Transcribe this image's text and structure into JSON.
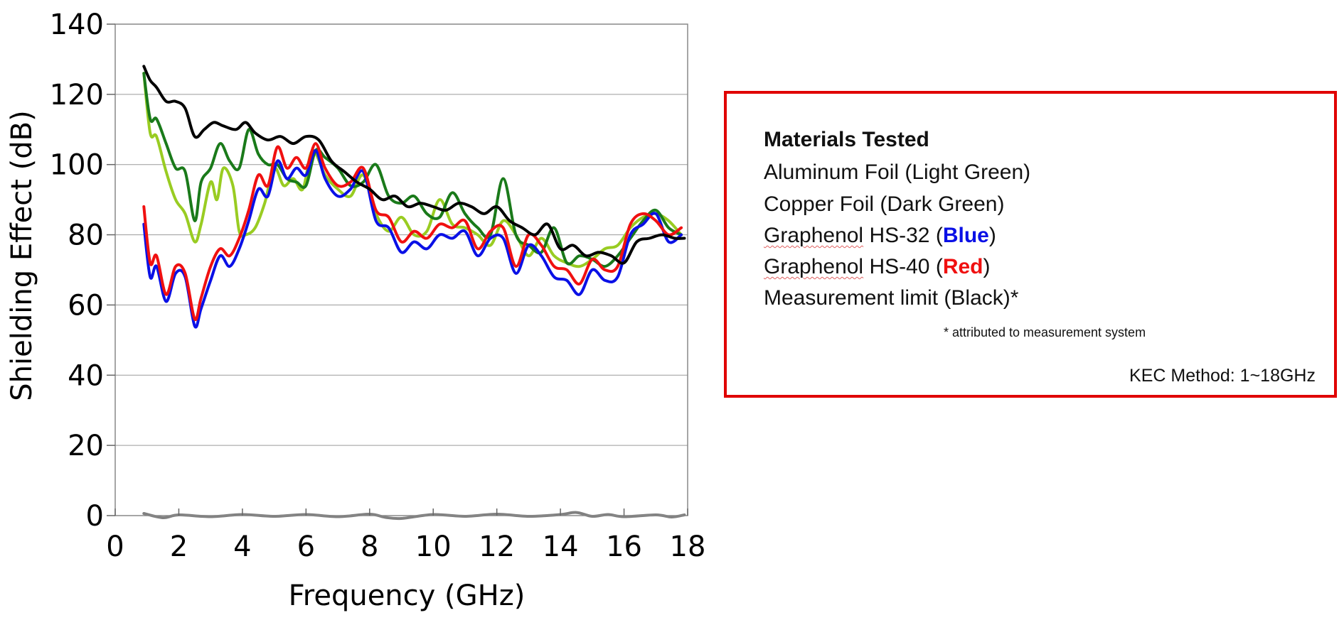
{
  "chart_data": {
    "type": "line",
    "title": "",
    "xlabel": "Frequency (GHz)",
    "ylabel": "Shielding Effect (dB)",
    "xlim": [
      0,
      18
    ],
    "ylim": [
      0,
      140
    ],
    "x_ticks": [
      "0",
      "2",
      "4",
      "6",
      "8",
      "10",
      "12",
      "14",
      "16",
      "18"
    ],
    "y_ticks": [
      "0",
      "20",
      "40",
      "60",
      "80",
      "100",
      "120",
      "140"
    ],
    "grid": "horizontal",
    "series": [
      {
        "key": "light-green",
        "color": "#99cc22",
        "x": [
          0.9,
          1.1,
          1.3,
          1.6,
          1.9,
          2.2,
          2.5,
          2.7,
          3.0,
          3.2,
          3.4,
          3.7,
          3.9,
          4.1,
          4.4,
          4.7,
          5.0,
          5.3,
          5.6,
          5.9,
          6.2,
          6.6,
          7.0,
          7.4,
          7.8,
          8.2,
          8.6,
          9.0,
          9.4,
          9.8,
          10.2,
          10.6,
          11.0,
          11.4,
          11.8,
          12.2,
          12.6,
          13.0,
          13.4,
          13.8,
          14.2,
          14.6,
          15.0,
          15.4,
          15.8,
          16.2,
          16.6,
          17.0,
          17.4,
          17.8
        ],
        "y": [
          126,
          109,
          108,
          98,
          90,
          86,
          78,
          83,
          95,
          90,
          99,
          94,
          81,
          80,
          82,
          89,
          99,
          94,
          96,
          93,
          104,
          97,
          93,
          91,
          97,
          86,
          81,
          85,
          80,
          81,
          90,
          83,
          82,
          80,
          77,
          84,
          80,
          74,
          79,
          74,
          72,
          71,
          73,
          76,
          77,
          82,
          85,
          86,
          84,
          80
        ]
      },
      {
        "key": "dark-green",
        "color": "#1a7a1a",
        "x": [
          0.9,
          1.1,
          1.3,
          1.6,
          1.9,
          2.2,
          2.5,
          2.7,
          3.0,
          3.3,
          3.6,
          3.9,
          4.2,
          4.5,
          4.8,
          5.1,
          5.4,
          5.7,
          6.0,
          6.3,
          6.6,
          7.0,
          7.4,
          7.8,
          8.2,
          8.6,
          9.0,
          9.4,
          9.8,
          10.2,
          10.6,
          11.0,
          11.4,
          11.8,
          12.2,
          12.6,
          13.0,
          13.4,
          13.8,
          14.2,
          14.6,
          15.0,
          15.4,
          15.8,
          16.2,
          16.6,
          17.0,
          17.4,
          17.8
        ],
        "y": [
          126,
          113,
          113,
          106,
          99,
          98,
          84,
          95,
          99,
          106,
          101,
          99,
          110,
          103,
          100,
          100,
          96,
          95,
          94,
          104,
          102,
          99,
          94,
          95,
          100,
          91,
          89,
          91,
          86,
          85,
          92,
          86,
          82,
          80,
          96,
          80,
          77,
          75,
          82,
          72,
          74,
          73,
          71,
          74,
          79,
          84,
          87,
          82,
          80
        ]
      },
      {
        "key": "blue",
        "color": "#0a10e6",
        "x": [
          0.9,
          1.1,
          1.3,
          1.6,
          1.9,
          2.2,
          2.5,
          2.7,
          3.0,
          3.3,
          3.6,
          3.9,
          4.2,
          4.5,
          4.8,
          5.1,
          5.4,
          5.7,
          6.0,
          6.3,
          6.6,
          7.0,
          7.4,
          7.8,
          8.2,
          8.6,
          9.0,
          9.4,
          9.8,
          10.2,
          10.6,
          11.0,
          11.4,
          11.8,
          12.2,
          12.6,
          13.0,
          13.4,
          13.8,
          14.2,
          14.6,
          15.0,
          15.4,
          15.8,
          16.2,
          16.6,
          17.0,
          17.4,
          17.8
        ],
        "y": [
          83,
          68,
          71,
          61,
          69,
          68,
          54,
          59,
          67,
          74,
          71,
          76,
          84,
          93,
          91,
          101,
          96,
          99,
          97,
          104,
          96,
          91,
          93,
          98,
          84,
          82,
          75,
          78,
          76,
          80,
          79,
          81,
          74,
          79,
          79,
          69,
          77,
          74,
          68,
          67,
          63,
          70,
          67,
          68,
          80,
          83,
          86,
          78,
          80
        ]
      },
      {
        "key": "red",
        "color": "#f01010",
        "x": [
          0.9,
          1.1,
          1.3,
          1.6,
          1.9,
          2.2,
          2.5,
          2.7,
          3.0,
          3.3,
          3.6,
          3.9,
          4.2,
          4.5,
          4.8,
          5.1,
          5.4,
          5.7,
          6.0,
          6.3,
          6.6,
          7.0,
          7.4,
          7.8,
          8.2,
          8.6,
          9.0,
          9.4,
          9.8,
          10.2,
          10.6,
          11.0,
          11.4,
          11.8,
          12.2,
          12.6,
          13.0,
          13.4,
          13.8,
          14.2,
          14.6,
          15.0,
          15.4,
          15.8,
          16.2,
          16.6,
          17.0,
          17.4,
          17.8
        ],
        "y": [
          88,
          72,
          74,
          63,
          71,
          69,
          56,
          62,
          71,
          76,
          74,
          79,
          87,
          97,
          94,
          105,
          99,
          102,
          99,
          106,
          99,
          94,
          95,
          99,
          87,
          85,
          78,
          81,
          79,
          83,
          82,
          84,
          76,
          81,
          82,
          71,
          80,
          77,
          71,
          70,
          66,
          73,
          70,
          71,
          83,
          86,
          84,
          80,
          82
        ]
      },
      {
        "key": "black",
        "color": "#000000",
        "x": [
          0.9,
          1.1,
          1.3,
          1.6,
          1.9,
          2.2,
          2.5,
          2.8,
          3.1,
          3.4,
          3.8,
          4.1,
          4.4,
          4.8,
          5.2,
          5.6,
          6.0,
          6.4,
          6.8,
          7.2,
          7.6,
          8.0,
          8.4,
          8.8,
          9.2,
          9.6,
          10.0,
          10.4,
          10.8,
          11.2,
          11.6,
          12.0,
          12.4,
          12.8,
          13.2,
          13.6,
          14.0,
          14.4,
          14.8,
          15.2,
          15.6,
          16.0,
          16.4,
          16.8,
          17.2,
          17.6,
          17.9
        ],
        "y": [
          128,
          124,
          122,
          118,
          118,
          116,
          108,
          110,
          112,
          111,
          110,
          112,
          109,
          107,
          108,
          106,
          108,
          107,
          101,
          98,
          95,
          93,
          90,
          91,
          88,
          89,
          88,
          87,
          89,
          88,
          86,
          88,
          84,
          82,
          80,
          83,
          76,
          77,
          74,
          75,
          74,
          72,
          78,
          79,
          80,
          79,
          79
        ]
      },
      {
        "key": "gray",
        "color": "#808080",
        "x": [
          0.9,
          1.5,
          2.0,
          3.0,
          4.0,
          5.0,
          6.0,
          7.0,
          8.0,
          8.5,
          9.0,
          10.0,
          11.0,
          12.0,
          13.0,
          14.0,
          14.5,
          15.0,
          15.5,
          16.0,
          17.0,
          17.5,
          17.9
        ],
        "y": [
          0.6,
          -0.6,
          0.2,
          -0.3,
          0.3,
          -0.2,
          0.3,
          -0.3,
          0.4,
          -0.5,
          -0.8,
          0.3,
          -0.2,
          0.4,
          -0.2,
          0.3,
          0.9,
          -0.2,
          0.3,
          -0.3,
          0.2,
          -0.4,
          0.2
        ]
      }
    ]
  },
  "legend": {
    "heading": "Materials Tested",
    "aluminum": "Aluminum Foil (Light Green)",
    "copper": "Copper Foil (Dark Green)",
    "hs32_brand": "Graphenol",
    "hs32_model": " HS-32 (",
    "hs32_color": "Blue",
    "hs32_close": ")",
    "hs40_brand": "Graphenol",
    "hs40_model": " HS-40 (",
    "hs40_color": "Red",
    "hs40_close": ")",
    "limit": "Measurement limit (Black)*",
    "footnote": "* attributed to measurement  system",
    "method": "KEC Method: 1~18GHz",
    "frame_color": "#e00000",
    "blue_color": "#0a10e6",
    "red_color": "#f01010"
  }
}
